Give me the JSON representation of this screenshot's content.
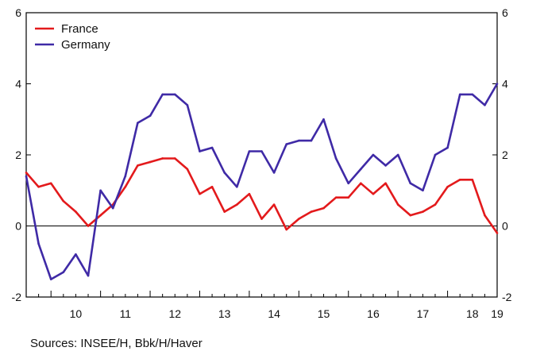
{
  "chart_data": {
    "type": "line",
    "title": "",
    "xlabel": "",
    "ylabel": "",
    "x_tick_labels": [
      "10",
      "11",
      "12",
      "13",
      "14",
      "15",
      "16",
      "17",
      "18",
      "19"
    ],
    "x_tick_positions": [
      2010,
      2011,
      2012,
      2013,
      2014,
      2015,
      2016,
      2017,
      2018,
      2019
    ],
    "xlim": [
      2009.5,
      2019
    ],
    "ylim": [
      -2,
      6
    ],
    "y_ticks": [
      -2,
      0,
      2,
      4,
      6
    ],
    "y_tick_labels": [
      "-2",
      "0",
      "2",
      "4",
      "6"
    ],
    "y_right_tick_labels": [
      "-2",
      "0",
      "2",
      "4",
      "6"
    ],
    "grid": false,
    "zero_line": true,
    "legend_position": "top-left",
    "x": [
      2009.5,
      2009.75,
      2010,
      2010.25,
      2010.5,
      2010.75,
      2011,
      2011.25,
      2011.5,
      2011.75,
      2012,
      2012.25,
      2012.5,
      2012.75,
      2013,
      2013.25,
      2013.5,
      2013.75,
      2014,
      2014.25,
      2014.5,
      2014.75,
      2015,
      2015.25,
      2015.5,
      2015.75,
      2016,
      2016.25,
      2016.5,
      2016.75,
      2017,
      2017.25,
      2017.5,
      2017.75,
      2018,
      2018.25,
      2018.5,
      2018.75,
      2019
    ],
    "series": [
      {
        "name": "France",
        "color": "#e31a1c",
        "values": [
          1.5,
          1.1,
          1.2,
          0.7,
          0.4,
          0.0,
          0.3,
          0.6,
          1.1,
          1.7,
          1.8,
          1.9,
          1.9,
          1.6,
          0.9,
          1.1,
          0.4,
          0.6,
          0.9,
          0.2,
          0.6,
          -0.1,
          0.2,
          0.4,
          0.5,
          0.8,
          0.8,
          1.2,
          0.9,
          1.2,
          0.6,
          0.3,
          0.4,
          0.6,
          1.1,
          1.3,
          1.3,
          0.3,
          -0.2
        ]
      },
      {
        "name": "Germany",
        "color": "#3f2aa6",
        "values": [
          1.4,
          -0.5,
          -1.5,
          -1.3,
          -0.8,
          -1.4,
          1.0,
          0.5,
          1.4,
          2.9,
          3.1,
          3.7,
          3.7,
          3.4,
          2.1,
          2.2,
          1.5,
          1.1,
          2.1,
          2.1,
          1.5,
          2.3,
          2.4,
          2.4,
          3.0,
          1.9,
          1.2,
          1.6,
          2.0,
          1.7,
          2.0,
          1.2,
          1.0,
          2.0,
          2.2,
          3.7,
          3.7,
          3.4,
          4.0
        ]
      }
    ]
  },
  "source_note": "Sources:  INSEE/H, Bbk/H/Haver"
}
